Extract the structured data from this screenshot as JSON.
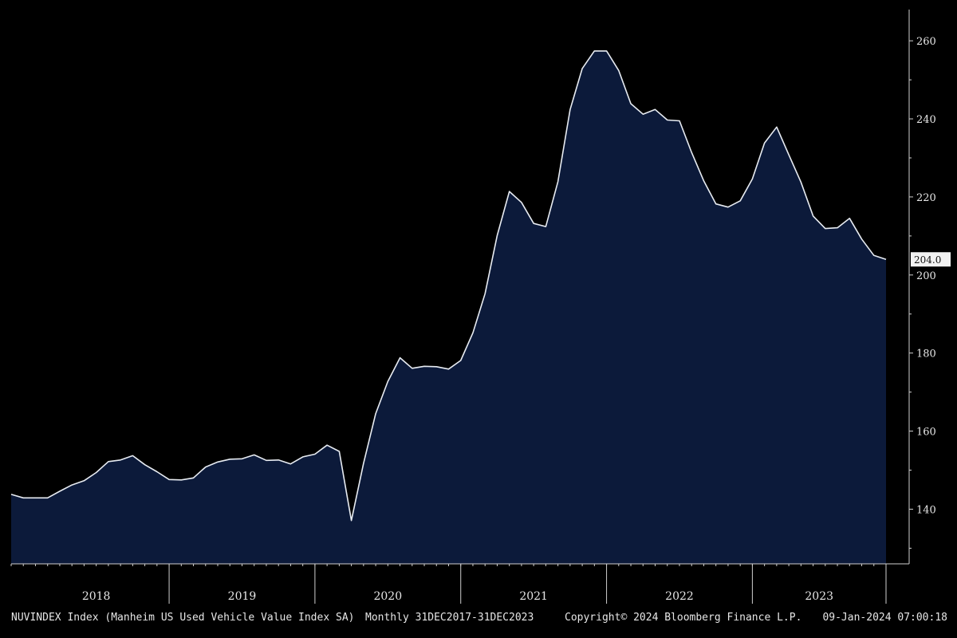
{
  "footer": {
    "description": "NUVINDEX Index (Manheim US Used Vehicle Value Index SA)",
    "range": "Monthly 31DEC2017-31DEC2023",
    "copyright": "Copyright© 2024 Bloomberg Finance L.P.",
    "timestamp": "09-Jan-2024 07:00:18"
  },
  "chart_data": {
    "type": "area",
    "x_label_format": "monthly",
    "x": [
      "2017-12",
      "2018-01",
      "2018-02",
      "2018-03",
      "2018-04",
      "2018-05",
      "2018-06",
      "2018-07",
      "2018-08",
      "2018-09",
      "2018-10",
      "2018-11",
      "2018-12",
      "2019-01",
      "2019-02",
      "2019-03",
      "2019-04",
      "2019-05",
      "2019-06",
      "2019-07",
      "2019-08",
      "2019-09",
      "2019-10",
      "2019-11",
      "2019-12",
      "2020-01",
      "2020-02",
      "2020-03",
      "2020-04",
      "2020-05",
      "2020-06",
      "2020-07",
      "2020-08",
      "2020-09",
      "2020-10",
      "2020-11",
      "2020-12",
      "2021-01",
      "2021-02",
      "2021-03",
      "2021-04",
      "2021-05",
      "2021-06",
      "2021-07",
      "2021-08",
      "2021-09",
      "2021-10",
      "2021-11",
      "2021-12",
      "2022-01",
      "2022-02",
      "2022-03",
      "2022-04",
      "2022-05",
      "2022-06",
      "2022-07",
      "2022-08",
      "2022-09",
      "2022-10",
      "2022-11",
      "2022-12",
      "2023-01",
      "2023-02",
      "2023-03",
      "2023-04",
      "2023-05",
      "2023-06",
      "2023-07",
      "2023-08",
      "2023-09",
      "2023-10",
      "2023-11",
      "2023-12"
    ],
    "series": [
      {
        "values": [
          143.8,
          142.9,
          142.9,
          142.9,
          144.6,
          146.2,
          147.3,
          149.4,
          152.2,
          152.6,
          153.7,
          151.4,
          149.6,
          147.6,
          147.5,
          148.0,
          150.8,
          152.1,
          152.8,
          152.9,
          153.9,
          152.5,
          152.6,
          151.6,
          153.4,
          154.1,
          156.4,
          154.8,
          137.1,
          151.7,
          164.5,
          172.7,
          178.8,
          176.1,
          176.6,
          176.5,
          175.9,
          178.1,
          185.2,
          195.2,
          210.1,
          221.4,
          218.6,
          213.2,
          212.4,
          223.9,
          242.4,
          252.9,
          257.4,
          257.4,
          252.4,
          243.9,
          241.2,
          242.4,
          239.7,
          239.5,
          231.4,
          224.1,
          218.2,
          217.4,
          219.0,
          224.6,
          233.8,
          237.9,
          230.8,
          223.8,
          215.1,
          211.9,
          212.1,
          214.5,
          209.2,
          205.0,
          204.0
        ]
      }
    ],
    "last_value_label": "204.0",
    "xlabel": "",
    "ylabel": "",
    "ylim": [
      126,
      268
    ],
    "y_ticks": [
      140,
      160,
      180,
      200,
      220,
      240,
      260
    ],
    "x_year_labels": [
      "2018",
      "2019",
      "2020",
      "2021",
      "2022",
      "2023"
    ],
    "grid": false,
    "colors": {
      "background": "#000000",
      "fill": "#0c1a3a",
      "line": "#e8ecf2",
      "axis": "#cfcfcf"
    }
  }
}
